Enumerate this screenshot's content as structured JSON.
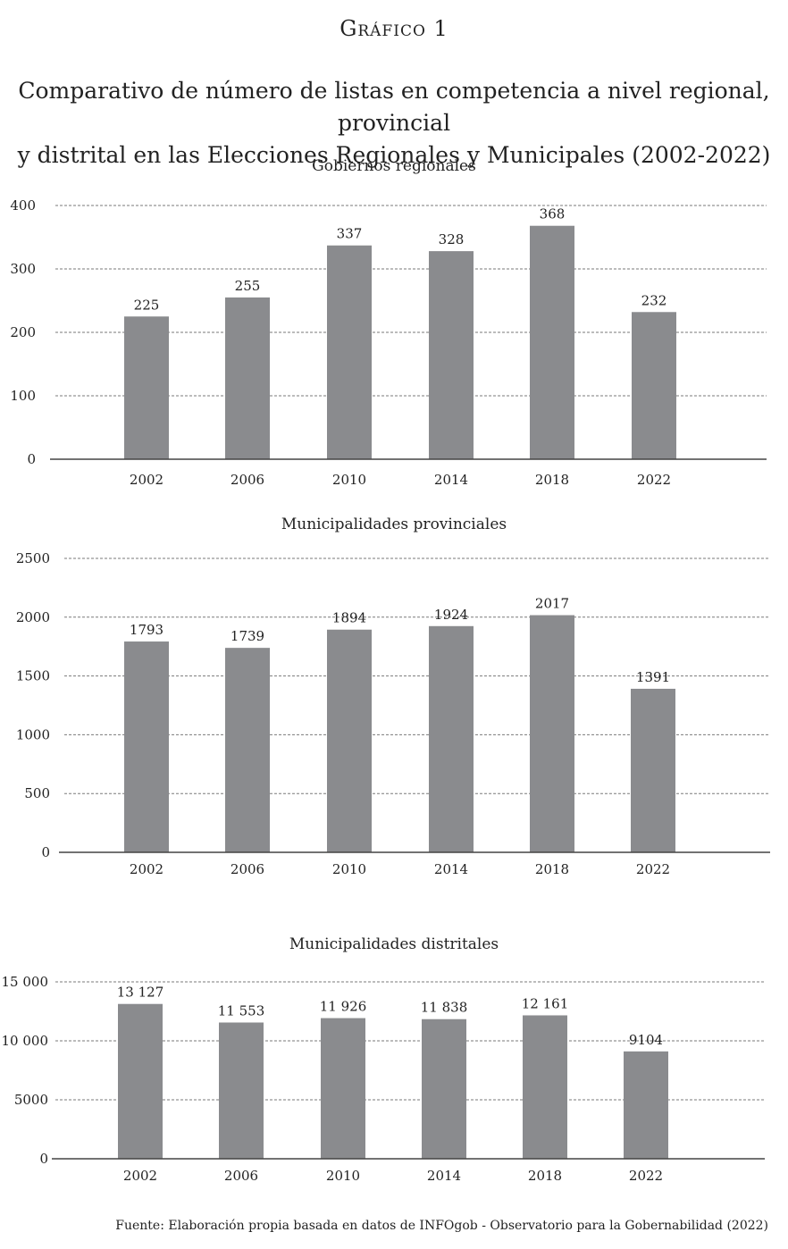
{
  "kicker": "Gráfico 1",
  "title_line1": "Comparativo de número de listas en competencia a nivel regional, provincial",
  "title_line2": "y distrital en las Elecciones Regionales y Municipales (2002-2022)",
  "source": "Fuente: Elaboración propia basada en datos de INFOgob - Observatorio para la Gobernabilidad (2022)",
  "colors": {
    "bar": "#8a8b8e",
    "grid": "#7a7a7a",
    "axis": "#444444"
  },
  "chart_data": [
    {
      "type": "bar",
      "title": "Gobiernos regionales",
      "categories": [
        "2002",
        "2006",
        "2010",
        "2014",
        "2018",
        "2022"
      ],
      "values": [
        225,
        255,
        337,
        328,
        368,
        232
      ],
      "value_labels": [
        "225",
        "255",
        "337",
        "328",
        "368",
        "232"
      ],
      "ylim": [
        0,
        400
      ],
      "yticks": [
        0,
        100,
        200,
        300,
        400
      ],
      "ytick_labels": [
        "0",
        "100",
        "200",
        "300",
        "400"
      ],
      "grid": true
    },
    {
      "type": "bar",
      "title": "Municipalidades provinciales",
      "categories": [
        "2002",
        "2006",
        "2010",
        "2014",
        "2018",
        "2022"
      ],
      "values": [
        1793,
        1739,
        1894,
        1924,
        2017,
        1391
      ],
      "value_labels": [
        "1793",
        "1739",
        "1894",
        "1924",
        "2017",
        "1391"
      ],
      "ylim": [
        0,
        2500
      ],
      "yticks": [
        0,
        500,
        1000,
        1500,
        2000,
        2500
      ],
      "ytick_labels": [
        "0",
        "500",
        "1000",
        "1500",
        "2000",
        "2500"
      ],
      "grid": true
    },
    {
      "type": "bar",
      "title": "Municipalidades distritales",
      "categories": [
        "2002",
        "2006",
        "2010",
        "2014",
        "2018",
        "2022"
      ],
      "values": [
        13127,
        11553,
        11926,
        11838,
        12161,
        9104
      ],
      "value_labels": [
        "13 127",
        "11 553",
        "11 926",
        "11 838",
        "12 161",
        "9104"
      ],
      "ylim": [
        0,
        15000
      ],
      "yticks": [
        0,
        5000,
        10000,
        15000
      ],
      "ytick_labels": [
        "0",
        "5000",
        "10 000",
        "15 000"
      ],
      "grid": true
    }
  ]
}
